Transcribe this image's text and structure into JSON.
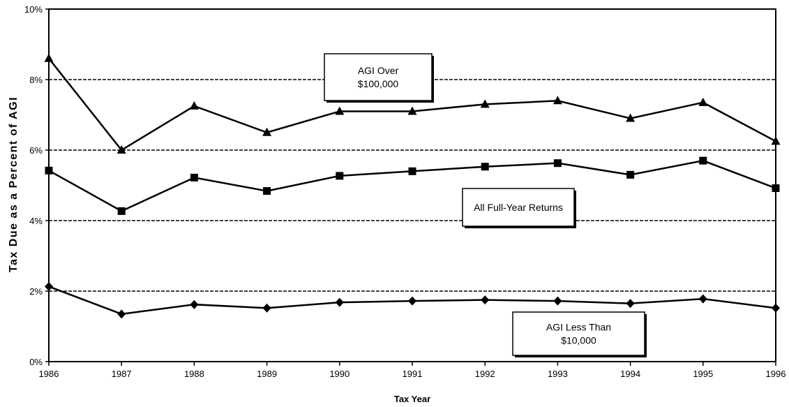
{
  "chart_data": {
    "type": "line",
    "xlabel": "Tax Year",
    "ylabel": "Tax Due as a Percent of AGI",
    "x": [
      "1986",
      "1987",
      "1988",
      "1989",
      "1990",
      "1991",
      "1992",
      "1993",
      "1994",
      "1995",
      "1996"
    ],
    "ylim": [
      0,
      10
    ],
    "yticks": [
      "0%",
      "2%",
      "4%",
      "6%",
      "8%",
      "10%"
    ],
    "grid": "horizontal dashed",
    "series": [
      {
        "name": "AGI Over $100,000",
        "label_lines": [
          "AGI Over",
          "$100,000"
        ],
        "marker": "triangle",
        "values": [
          8.6,
          6.0,
          7.25,
          6.5,
          7.1,
          7.1,
          7.3,
          7.4,
          6.9,
          7.35,
          6.25
        ]
      },
      {
        "name": "All Full-Year Returns",
        "label_lines": [
          "All Full-Year Returns"
        ],
        "marker": "square",
        "values": [
          5.42,
          4.27,
          5.22,
          4.84,
          5.27,
          5.4,
          5.53,
          5.63,
          5.3,
          5.7,
          4.92
        ]
      },
      {
        "name": "AGI Less Than $10,000",
        "label_lines": [
          "AGI Less Than",
          "$10,000"
        ],
        "marker": "diamond",
        "values": [
          2.13,
          1.35,
          1.62,
          1.52,
          1.68,
          1.72,
          1.75,
          1.72,
          1.65,
          1.78,
          1.52
        ]
      }
    ],
    "colors": {
      "line": "#000000",
      "grid": "#000000",
      "background": "#ffffff"
    }
  }
}
